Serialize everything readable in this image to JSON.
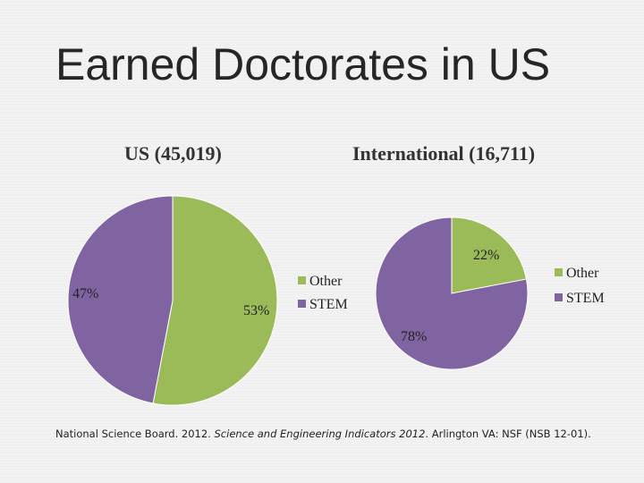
{
  "slide": {
    "title": "Earned Doctorates in US"
  },
  "chart_data": [
    {
      "type": "pie",
      "title": "US (45,019)",
      "categories": [
        "Other",
        "STEM"
      ],
      "values": [
        53,
        47
      ],
      "labels": [
        "53%",
        "47%"
      ],
      "colors": [
        "#9BBB59",
        "#8064A2"
      ],
      "legend": "right",
      "legend_entries": [
        "Other",
        "STEM"
      ]
    },
    {
      "type": "pie",
      "title": "International (16,711)",
      "categories": [
        "Other",
        "STEM"
      ],
      "values": [
        22,
        78
      ],
      "labels": [
        "22%",
        "78%"
      ],
      "colors": [
        "#9BBB59",
        "#8064A2"
      ],
      "legend": "right",
      "legend_entries": [
        "Other",
        "STEM"
      ]
    }
  ],
  "source": {
    "prefix": "National Science Board. 2012. ",
    "title_italic": "Science and Engineering Indicators 2012",
    "suffix": ". Arlington VA: NSF (NSB 12-01)."
  }
}
